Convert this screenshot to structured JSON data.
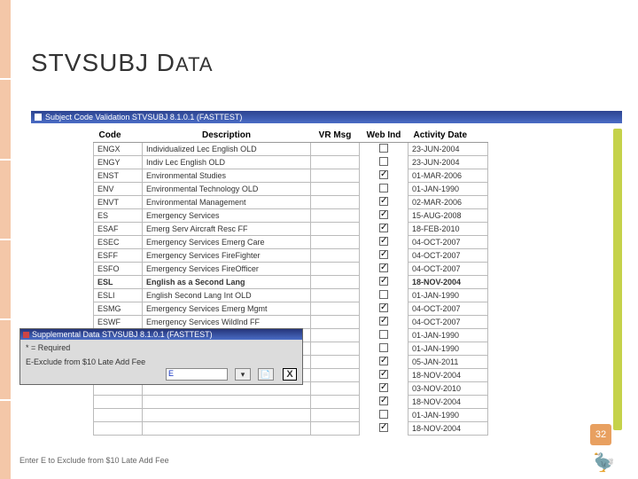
{
  "slide": {
    "title_main": "STVSUBJ D",
    "title_caps": "ATA",
    "page_number": "32"
  },
  "window": {
    "title": "Subject Code Validation  STVSUBJ  8.1.0.1  (FASTTEST)"
  },
  "headers": {
    "code": "Code",
    "desc": "Description",
    "vr": "VR Msg",
    "web": "Web Ind",
    "act": "Activity Date"
  },
  "rows": [
    {
      "code": "ENGX",
      "desc": "Individualized Lec English OLD",
      "web": false,
      "act": "23-JUN-2004"
    },
    {
      "code": "ENGY",
      "desc": "Indiv Lec English OLD",
      "web": false,
      "act": "23-JUN-2004"
    },
    {
      "code": "ENST",
      "desc": "Environmental Studies",
      "web": true,
      "act": "01-MAR-2006"
    },
    {
      "code": "ENV",
      "desc": "Environmental Technology OLD",
      "web": false,
      "act": "01-JAN-1990"
    },
    {
      "code": "ENVT",
      "desc": "Environmental Management",
      "web": true,
      "act": "02-MAR-2006"
    },
    {
      "code": "ES",
      "desc": "Emergency Services",
      "web": true,
      "act": "15-AUG-2008"
    },
    {
      "code": "ESAF",
      "desc": "Emerg Serv Aircraft Resc FF",
      "web": true,
      "act": "18-FEB-2010"
    },
    {
      "code": "ESEC",
      "desc": "Emergency Services Emerg Care",
      "web": true,
      "act": "04-OCT-2007"
    },
    {
      "code": "ESFF",
      "desc": "Emergency Services FireFighter",
      "web": true,
      "act": "04-OCT-2007"
    },
    {
      "code": "ESFO",
      "desc": "Emergency Services FireOfficer",
      "web": true,
      "act": "04-OCT-2007"
    },
    {
      "code": "ESL",
      "desc": "English as a Second Lang",
      "web": true,
      "act": "18-NOV-2004",
      "sel": true
    },
    {
      "code": "ESLI",
      "desc": "English Second Lang Int OLD",
      "web": false,
      "act": "01-JAN-1990"
    },
    {
      "code": "ESMG",
      "desc": "Emergency Services Emerg Mgmt",
      "web": true,
      "act": "04-OCT-2007"
    },
    {
      "code": "ESWF",
      "desc": "Emergency Services Wildlnd FF",
      "web": true,
      "act": "04-OCT-2007"
    },
    {
      "code": "",
      "desc": "",
      "web": false,
      "act": "01-JAN-1990"
    },
    {
      "code": "",
      "desc": "",
      "web": false,
      "act": "01-JAN-1990"
    },
    {
      "code": "",
      "desc": "",
      "web": true,
      "act": "05-JAN-2011"
    },
    {
      "code": "",
      "desc": "",
      "web": true,
      "act": "18-NOV-2004"
    },
    {
      "code": "",
      "desc": "",
      "web": true,
      "act": "03-NOV-2010"
    },
    {
      "code": "",
      "desc": "",
      "web": true,
      "act": "18-NOV-2004"
    },
    {
      "code": "",
      "desc": "",
      "web": false,
      "act": "01-JAN-1990"
    },
    {
      "code": "",
      "desc": "",
      "web": true,
      "act": "18-NOV-2004"
    }
  ],
  "popup": {
    "title": "Supplemental Data  STVSUBJ  8.1.0.1  (FASTTEST)",
    "required_label": "*  = Required",
    "field_label": "E-Exclude from $10 Late Add Fee",
    "field_value": "E",
    "close_label": "X"
  },
  "footer_note": "Enter E to Exclude from $10 Late Add Fee"
}
